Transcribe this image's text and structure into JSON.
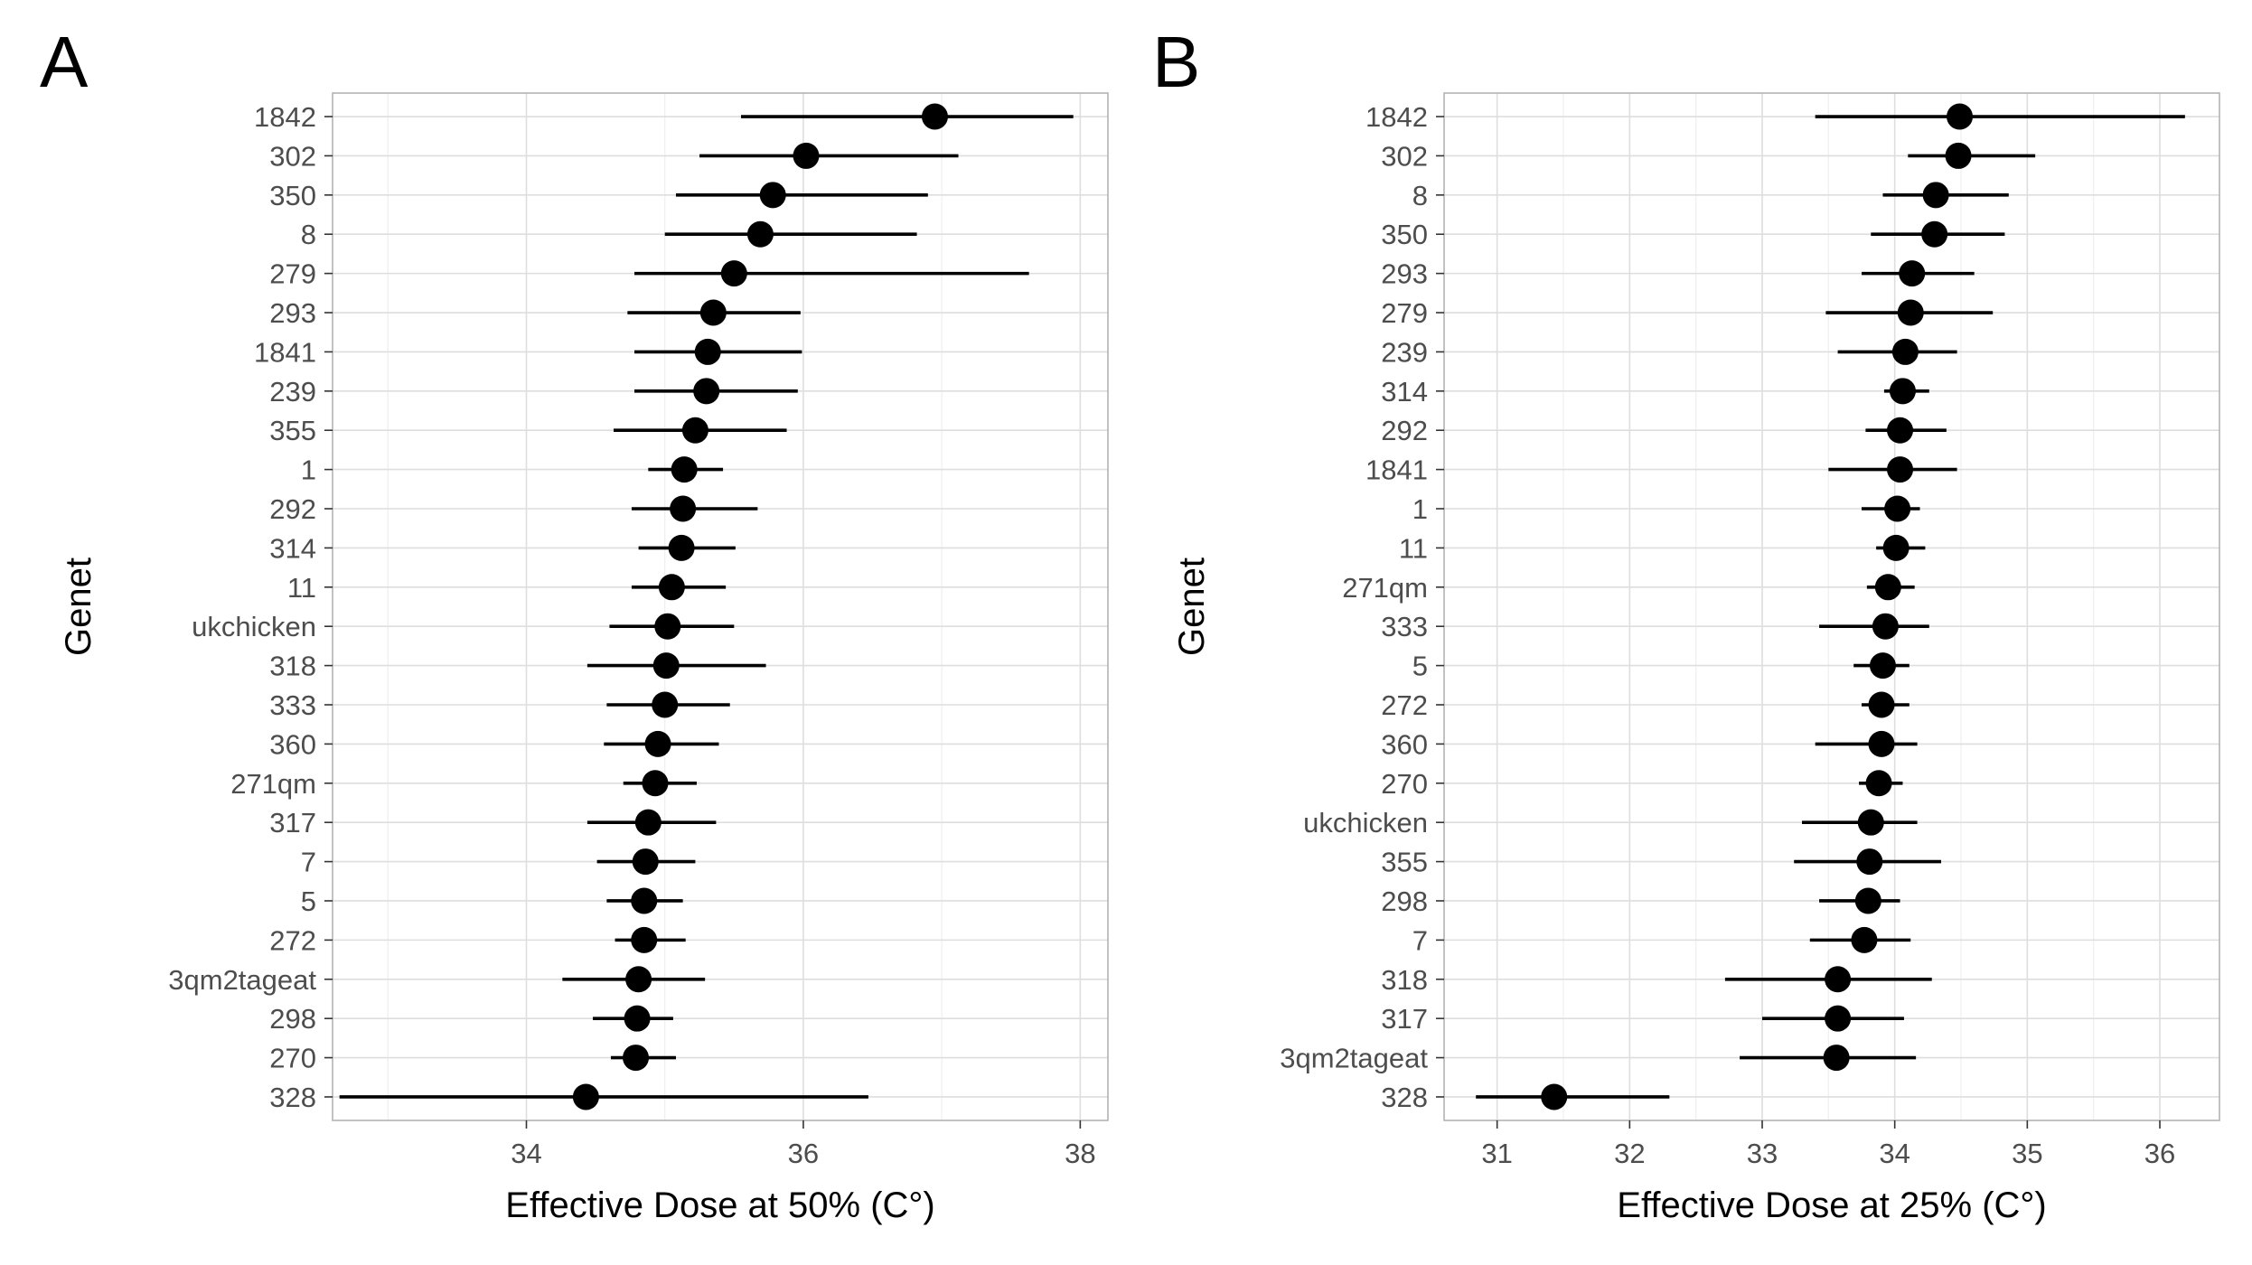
{
  "chart_data": [
    {
      "type": "scatter",
      "panel_label": "A",
      "xlabel": "Effective Dose at 50% (C°)",
      "ylabel": "Genet",
      "xlim": [
        32.6,
        38.2
      ],
      "x_ticks": [
        34,
        36,
        38
      ],
      "x_minor": [
        33,
        35,
        37
      ],
      "grid": true,
      "points": [
        {
          "genet": "1842",
          "estimate": 36.95,
          "lower": 35.55,
          "upper": 37.95
        },
        {
          "genet": "302",
          "estimate": 36.02,
          "lower": 35.25,
          "upper": 37.12
        },
        {
          "genet": "350",
          "estimate": 35.78,
          "lower": 35.08,
          "upper": 36.9
        },
        {
          "genet": "8",
          "estimate": 35.69,
          "lower": 35.0,
          "upper": 36.82
        },
        {
          "genet": "279",
          "estimate": 35.5,
          "lower": 34.78,
          "upper": 37.63
        },
        {
          "genet": "293",
          "estimate": 35.35,
          "lower": 34.73,
          "upper": 35.98
        },
        {
          "genet": "1841",
          "estimate": 35.31,
          "lower": 34.78,
          "upper": 35.99
        },
        {
          "genet": "239",
          "estimate": 35.3,
          "lower": 34.78,
          "upper": 35.96
        },
        {
          "genet": "355",
          "estimate": 35.22,
          "lower": 34.63,
          "upper": 35.88
        },
        {
          "genet": "1",
          "estimate": 35.14,
          "lower": 34.88,
          "upper": 35.42
        },
        {
          "genet": "292",
          "estimate": 35.13,
          "lower": 34.76,
          "upper": 35.67
        },
        {
          "genet": "314",
          "estimate": 35.12,
          "lower": 34.81,
          "upper": 35.51
        },
        {
          "genet": "11",
          "estimate": 35.05,
          "lower": 34.76,
          "upper": 35.44
        },
        {
          "genet": "ukchicken",
          "estimate": 35.02,
          "lower": 34.6,
          "upper": 35.5
        },
        {
          "genet": "318",
          "estimate": 35.01,
          "lower": 34.44,
          "upper": 35.73
        },
        {
          "genet": "333",
          "estimate": 35.0,
          "lower": 34.58,
          "upper": 35.47
        },
        {
          "genet": "360",
          "estimate": 34.95,
          "lower": 34.56,
          "upper": 35.39
        },
        {
          "genet": "271qm",
          "estimate": 34.93,
          "lower": 34.7,
          "upper": 35.23
        },
        {
          "genet": "317",
          "estimate": 34.88,
          "lower": 34.44,
          "upper": 35.37
        },
        {
          "genet": "7",
          "estimate": 34.86,
          "lower": 34.51,
          "upper": 35.22
        },
        {
          "genet": "5",
          "estimate": 34.85,
          "lower": 34.58,
          "upper": 35.13
        },
        {
          "genet": "272",
          "estimate": 34.85,
          "lower": 34.64,
          "upper": 35.15
        },
        {
          "genet": "3qm2tageat",
          "estimate": 34.81,
          "lower": 34.26,
          "upper": 35.29
        },
        {
          "genet": "298",
          "estimate": 34.8,
          "lower": 34.48,
          "upper": 35.06
        },
        {
          "genet": "270",
          "estimate": 34.79,
          "lower": 34.61,
          "upper": 35.08
        },
        {
          "genet": "328",
          "estimate": 34.43,
          "lower": 32.65,
          "upper": 36.47
        }
      ]
    },
    {
      "type": "scatter",
      "panel_label": "B",
      "xlabel": "Effective Dose at 25% (C°)",
      "ylabel": "Genet",
      "xlim": [
        30.6,
        36.45
      ],
      "x_ticks": [
        31,
        32,
        33,
        34,
        35,
        36
      ],
      "x_minor": [
        30.5,
        31.5,
        32.5,
        33.5,
        34.5,
        35.5,
        36.5
      ],
      "grid": true,
      "points": [
        {
          "genet": "1842",
          "estimate": 34.49,
          "lower": 33.4,
          "upper": 36.19
        },
        {
          "genet": "302",
          "estimate": 34.48,
          "lower": 34.1,
          "upper": 35.06
        },
        {
          "genet": "8",
          "estimate": 34.31,
          "lower": 33.91,
          "upper": 34.86
        },
        {
          "genet": "350",
          "estimate": 34.3,
          "lower": 33.82,
          "upper": 34.83
        },
        {
          "genet": "293",
          "estimate": 34.13,
          "lower": 33.75,
          "upper": 34.6
        },
        {
          "genet": "279",
          "estimate": 34.12,
          "lower": 33.48,
          "upper": 34.74
        },
        {
          "genet": "239",
          "estimate": 34.08,
          "lower": 33.57,
          "upper": 34.47
        },
        {
          "genet": "314",
          "estimate": 34.06,
          "lower": 33.92,
          "upper": 34.26
        },
        {
          "genet": "292",
          "estimate": 34.04,
          "lower": 33.78,
          "upper": 34.39
        },
        {
          "genet": "1841",
          "estimate": 34.04,
          "lower": 33.5,
          "upper": 34.47
        },
        {
          "genet": "1",
          "estimate": 34.02,
          "lower": 33.75,
          "upper": 34.19
        },
        {
          "genet": "11",
          "estimate": 34.01,
          "lower": 33.86,
          "upper": 34.23
        },
        {
          "genet": "271qm",
          "estimate": 33.95,
          "lower": 33.79,
          "upper": 34.15
        },
        {
          "genet": "333",
          "estimate": 33.93,
          "lower": 33.43,
          "upper": 34.26
        },
        {
          "genet": "5",
          "estimate": 33.91,
          "lower": 33.69,
          "upper": 34.11
        },
        {
          "genet": "272",
          "estimate": 33.9,
          "lower": 33.75,
          "upper": 34.11
        },
        {
          "genet": "360",
          "estimate": 33.9,
          "lower": 33.4,
          "upper": 34.17
        },
        {
          "genet": "270",
          "estimate": 33.88,
          "lower": 33.73,
          "upper": 34.06
        },
        {
          "genet": "ukchicken",
          "estimate": 33.82,
          "lower": 33.3,
          "upper": 34.17
        },
        {
          "genet": "355",
          "estimate": 33.81,
          "lower": 33.24,
          "upper": 34.35
        },
        {
          "genet": "298",
          "estimate": 33.8,
          "lower": 33.43,
          "upper": 34.04
        },
        {
          "genet": "7",
          "estimate": 33.77,
          "lower": 33.36,
          "upper": 34.12
        },
        {
          "genet": "318",
          "estimate": 33.57,
          "lower": 32.72,
          "upper": 34.28
        },
        {
          "genet": "317",
          "estimate": 33.57,
          "lower": 33.0,
          "upper": 34.07
        },
        {
          "genet": "3qm2tageat",
          "estimate": 33.56,
          "lower": 32.83,
          "upper": 34.16
        },
        {
          "genet": "328",
          "estimate": 31.43,
          "lower": 30.84,
          "upper": 32.3
        }
      ]
    }
  ]
}
